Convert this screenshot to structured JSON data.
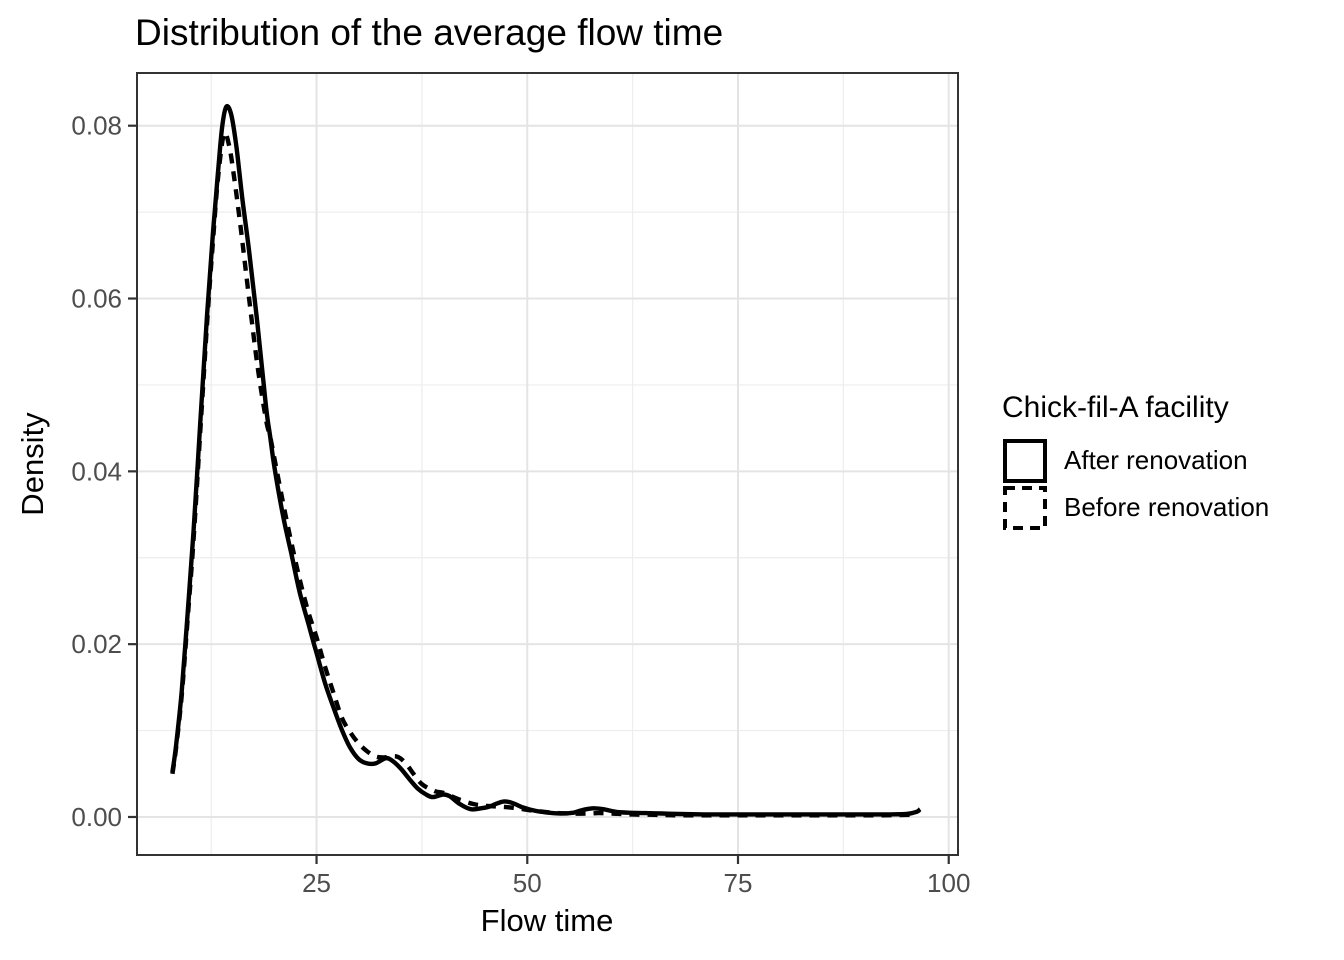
{
  "figure": {
    "title": "Distribution of the average flow time"
  },
  "legend": {
    "title": "Chick-fil-A facility",
    "items": [
      {
        "label": "After renovation",
        "line_style": "solid"
      },
      {
        "label": "Before renovation",
        "line_style": "dashed"
      }
    ]
  },
  "colors": {
    "curve": "#000000",
    "grid_major": "#e4e4e4",
    "grid_minor": "#ededed",
    "panel_border": "#333333",
    "tick_mark": "#333333",
    "tick_label": "#4d4d4d",
    "background": "#ffffff"
  },
  "chart_data": {
    "type": "line",
    "title": "Distribution of the average flow time",
    "xlabel": "Flow time",
    "ylabel": "Density",
    "grid": true,
    "legend_position": "right",
    "x_axis": {
      "range": [
        3.7,
        101.1
      ],
      "ticks": [
        25,
        50,
        75,
        100
      ],
      "tick_labels": [
        "25",
        "50",
        "75",
        "100"
      ],
      "minor_ticks": [
        12.5,
        37.5,
        62.5,
        87.5
      ]
    },
    "y_axis": {
      "range": [
        -0.0044,
        0.0861
      ],
      "ticks": [
        0,
        0.02,
        0.04,
        0.06,
        0.08
      ],
      "tick_labels": [
        "0.00",
        "0.02",
        "0.04",
        "0.06",
        "0.08"
      ],
      "minor_ticks": [
        0.01,
        0.03,
        0.05,
        0.07
      ]
    },
    "series": [
      {
        "name": "After renovation",
        "style": "solid",
        "points": [
          [
            7.9,
            0.0052
          ],
          [
            8.3,
            0.008
          ],
          [
            9.0,
            0.0145
          ],
          [
            9.7,
            0.0235
          ],
          [
            10.4,
            0.033
          ],
          [
            11.2,
            0.0455
          ],
          [
            12.0,
            0.058
          ],
          [
            12.7,
            0.0675
          ],
          [
            13.3,
            0.0745
          ],
          [
            13.8,
            0.0798
          ],
          [
            14.3,
            0.0822
          ],
          [
            14.9,
            0.0812
          ],
          [
            15.5,
            0.0775
          ],
          [
            16.2,
            0.0715
          ],
          [
            17.0,
            0.0655
          ],
          [
            18.0,
            0.057
          ],
          [
            19.0,
            0.0475
          ],
          [
            19.5,
            0.044
          ],
          [
            20.0,
            0.0405
          ],
          [
            21.0,
            0.035
          ],
          [
            22.0,
            0.0305
          ],
          [
            23.0,
            0.026
          ],
          [
            24.0,
            0.0225
          ],
          [
            24.7,
            0.02
          ],
          [
            25.0,
            0.019
          ],
          [
            26.0,
            0.0155
          ],
          [
            27.0,
            0.0127
          ],
          [
            28.0,
            0.0101
          ],
          [
            29.0,
            0.008
          ],
          [
            30.0,
            0.0067
          ],
          [
            31.0,
            0.0062
          ],
          [
            32.0,
            0.0062
          ],
          [
            33.2,
            0.0068
          ],
          [
            34.0,
            0.0065
          ],
          [
            35.0,
            0.0056
          ],
          [
            36.0,
            0.0044
          ],
          [
            37.0,
            0.0033
          ],
          [
            38.0,
            0.0026
          ],
          [
            38.8,
            0.0023
          ],
          [
            40.0,
            0.0026
          ],
          [
            40.8,
            0.0024
          ],
          [
            42.0,
            0.0015
          ],
          [
            43.3,
            0.0009
          ],
          [
            44.5,
            0.001
          ],
          [
            45.5,
            0.0012
          ],
          [
            46.5,
            0.0016
          ],
          [
            47.3,
            0.0018
          ],
          [
            48.3,
            0.0016
          ],
          [
            49.5,
            0.0011
          ],
          [
            51.0,
            0.0007
          ],
          [
            52.5,
            0.0005
          ],
          [
            54.0,
            0.0004
          ],
          [
            55.5,
            0.0005
          ],
          [
            56.5,
            0.0008
          ],
          [
            57.8,
            0.001
          ],
          [
            59.0,
            0.0009
          ],
          [
            60.5,
            0.0006
          ],
          [
            62.0,
            0.0005
          ],
          [
            64.0,
            0.00045
          ],
          [
            66.0,
            0.0004
          ],
          [
            68.0,
            0.00035
          ],
          [
            71.0,
            0.0003
          ],
          [
            75.0,
            0.0003
          ],
          [
            80.0,
            0.0003
          ],
          [
            85.0,
            0.0003
          ],
          [
            90.0,
            0.0003
          ],
          [
            93.0,
            0.0003
          ],
          [
            95.0,
            0.00035
          ],
          [
            96.2,
            0.0006
          ],
          [
            96.6,
            0.0009
          ]
        ]
      },
      {
        "name": "Before renovation",
        "style": "dashed",
        "points": [
          [
            7.9,
            0.005
          ],
          [
            8.3,
            0.0077
          ],
          [
            9.0,
            0.014
          ],
          [
            9.7,
            0.0228
          ],
          [
            10.4,
            0.032
          ],
          [
            11.2,
            0.0445
          ],
          [
            12.0,
            0.057
          ],
          [
            12.7,
            0.0665
          ],
          [
            13.3,
            0.0738
          ],
          [
            14.0,
            0.079
          ],
          [
            14.6,
            0.0778
          ],
          [
            15.2,
            0.0742
          ],
          [
            16.0,
            0.0682
          ],
          [
            17.0,
            0.06
          ],
          [
            18.0,
            0.0522
          ],
          [
            19.0,
            0.046
          ],
          [
            19.5,
            0.044
          ],
          [
            20.0,
            0.0415
          ],
          [
            21.0,
            0.0365
          ],
          [
            22.0,
            0.0318
          ],
          [
            23.0,
            0.0275
          ],
          [
            24.0,
            0.0238
          ],
          [
            25.0,
            0.0208
          ],
          [
            26.0,
            0.0174
          ],
          [
            27.0,
            0.0144
          ],
          [
            28.0,
            0.0115
          ],
          [
            29.0,
            0.0098
          ],
          [
            30.0,
            0.0085
          ],
          [
            31.0,
            0.0076
          ],
          [
            32.0,
            0.007
          ],
          [
            33.0,
            0.0069
          ],
          [
            34.5,
            0.007
          ],
          [
            35.5,
            0.0063
          ],
          [
            36.5,
            0.005
          ],
          [
            37.5,
            0.0038
          ],
          [
            39.0,
            0.003
          ],
          [
            40.0,
            0.0028
          ],
          [
            41.0,
            0.0024
          ],
          [
            42.0,
            0.002
          ],
          [
            43.6,
            0.0015
          ],
          [
            45.0,
            0.0013
          ],
          [
            46.5,
            0.0012
          ],
          [
            48.0,
            0.0011
          ],
          [
            49.5,
            0.0009
          ],
          [
            51.0,
            0.0007
          ],
          [
            53.0,
            0.0005
          ],
          [
            55.0,
            0.0004
          ],
          [
            57.0,
            0.0004
          ],
          [
            58.5,
            0.00045
          ],
          [
            60.0,
            0.0004
          ],
          [
            62.0,
            0.0003
          ],
          [
            65.0,
            0.00025
          ],
          [
            68.0,
            0.0002
          ],
          [
            72.0,
            0.0002
          ],
          [
            76.0,
            0.0002
          ],
          [
            80.0,
            0.0002
          ],
          [
            84.0,
            0.0002
          ],
          [
            88.0,
            0.0002
          ],
          [
            92.0,
            0.0002
          ],
          [
            95.5,
            0.00025
          ]
        ]
      }
    ]
  }
}
